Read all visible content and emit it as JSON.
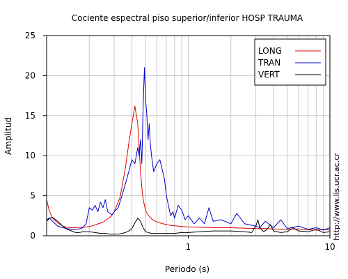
{
  "chart_data": {
    "type": "line",
    "title": "Cociente espectral piso superior/inferior  HOSP TRAUMA",
    "xlabel": "Periodo (s)",
    "ylabel": "Amplitud",
    "x_scale": "log",
    "xlim": [
      0.1,
      10
    ],
    "ylim": [
      0,
      25
    ],
    "grid": true,
    "legend_position": "top-right",
    "x_tick_labels": [
      {
        "value": 1,
        "label": "1"
      },
      {
        "value": 10,
        "label": "10"
      }
    ],
    "y_ticks": [
      0,
      5,
      10,
      15,
      20,
      25
    ],
    "side_text": "http://www.lis.ucr.ac.cr",
    "series": [
      {
        "name": "LONG",
        "color": "#dd0000",
        "x": [
          0.1,
          0.104,
          0.11,
          0.12,
          0.13,
          0.14,
          0.15,
          0.16,
          0.18,
          0.2,
          0.22,
          0.25,
          0.28,
          0.3,
          0.33,
          0.36,
          0.38,
          0.4,
          0.42,
          0.44,
          0.45,
          0.46,
          0.47,
          0.48,
          0.49,
          0.5,
          0.52,
          0.55,
          0.58,
          0.62,
          0.66,
          0.7,
          0.75,
          0.8,
          0.9,
          1.0,
          1.2,
          1.5,
          2.0,
          2.5,
          3.0,
          3.5,
          4.0,
          5.0,
          6.0,
          7.0,
          8.0,
          9.0,
          10.0
        ],
        "y": [
          4.5,
          3.2,
          2.2,
          1.6,
          1.2,
          1.05,
          1.0,
          1.0,
          1.05,
          1.15,
          1.35,
          1.7,
          2.3,
          3.0,
          4.8,
          8.5,
          11.5,
          14.0,
          16.2,
          14.0,
          11.0,
          8.0,
          6.0,
          4.6,
          3.8,
          3.1,
          2.6,
          2.1,
          1.85,
          1.65,
          1.5,
          1.4,
          1.3,
          1.25,
          1.15,
          1.1,
          1.05,
          1.0,
          1.0,
          0.95,
          0.9,
          0.9,
          0.85,
          0.8,
          0.85,
          0.75,
          0.7,
          0.8,
          0.7
        ]
      },
      {
        "name": "TRAN",
        "color": "#0000cc",
        "x": [
          0.1,
          0.105,
          0.11,
          0.12,
          0.13,
          0.14,
          0.15,
          0.16,
          0.17,
          0.18,
          0.19,
          0.2,
          0.21,
          0.22,
          0.23,
          0.24,
          0.25,
          0.26,
          0.27,
          0.28,
          0.29,
          0.3,
          0.32,
          0.34,
          0.36,
          0.38,
          0.4,
          0.42,
          0.44,
          0.45,
          0.46,
          0.47,
          0.48,
          0.49,
          0.5,
          0.51,
          0.52,
          0.53,
          0.54,
          0.55,
          0.57,
          0.6,
          0.63,
          0.65,
          0.68,
          0.7,
          0.73,
          0.75,
          0.78,
          0.8,
          0.85,
          0.9,
          0.95,
          1.0,
          1.1,
          1.2,
          1.3,
          1.4,
          1.5,
          1.7,
          2.0,
          2.2,
          2.5,
          3.0,
          3.2,
          3.5,
          4.0,
          4.5,
          5.0,
          6.0,
          7.0,
          8.0,
          9.0,
          10.0
        ],
        "y": [
          2.0,
          2.2,
          1.8,
          1.2,
          1.0,
          0.9,
          0.8,
          0.8,
          0.85,
          1.0,
          1.5,
          3.5,
          3.2,
          3.8,
          3.0,
          4.2,
          3.5,
          4.5,
          3.0,
          2.8,
          2.6,
          3.0,
          3.5,
          5.0,
          6.5,
          8.0,
          9.5,
          9.0,
          11.0,
          10.0,
          12.0,
          9.0,
          16.0,
          21.0,
          17.0,
          15.0,
          12.0,
          14.0,
          11.5,
          10.0,
          8.0,
          9.0,
          9.5,
          8.5,
          7.0,
          5.0,
          3.5,
          2.5,
          3.0,
          2.2,
          3.8,
          3.2,
          2.0,
          2.5,
          1.5,
          2.2,
          1.5,
          3.5,
          1.8,
          2.0,
          1.5,
          2.8,
          1.5,
          1.2,
          1.0,
          1.8,
          1.0,
          2.0,
          0.9,
          1.2,
          0.8,
          1.0,
          0.7,
          1.0
        ]
      },
      {
        "name": "VERT",
        "color": "#000000",
        "x": [
          0.1,
          0.105,
          0.11,
          0.12,
          0.13,
          0.14,
          0.15,
          0.16,
          0.17,
          0.18,
          0.2,
          0.22,
          0.24,
          0.26,
          0.28,
          0.3,
          0.32,
          0.34,
          0.36,
          0.38,
          0.4,
          0.42,
          0.44,
          0.46,
          0.48,
          0.5,
          0.55,
          0.6,
          0.7,
          0.8,
          0.9,
          1.0,
          1.2,
          1.5,
          2.0,
          2.5,
          2.8,
          3.0,
          3.1,
          3.2,
          3.4,
          3.6,
          3.8,
          4.0,
          4.5,
          5.0,
          5.5,
          6.0,
          7.0,
          8.0,
          9.0,
          10.0
        ],
        "y": [
          1.8,
          2.2,
          2.3,
          1.8,
          1.2,
          0.8,
          0.6,
          0.4,
          0.4,
          0.5,
          0.5,
          0.4,
          0.3,
          0.3,
          0.2,
          0.2,
          0.2,
          0.3,
          0.4,
          0.6,
          0.9,
          1.6,
          2.2,
          1.8,
          1.0,
          0.5,
          0.3,
          0.3,
          0.3,
          0.3,
          0.4,
          0.4,
          0.5,
          0.6,
          0.6,
          0.5,
          0.4,
          1.2,
          2.0,
          1.0,
          0.5,
          0.8,
          1.4,
          0.6,
          0.4,
          0.5,
          1.0,
          0.6,
          0.5,
          0.8,
          0.4,
          0.5
        ]
      }
    ]
  }
}
